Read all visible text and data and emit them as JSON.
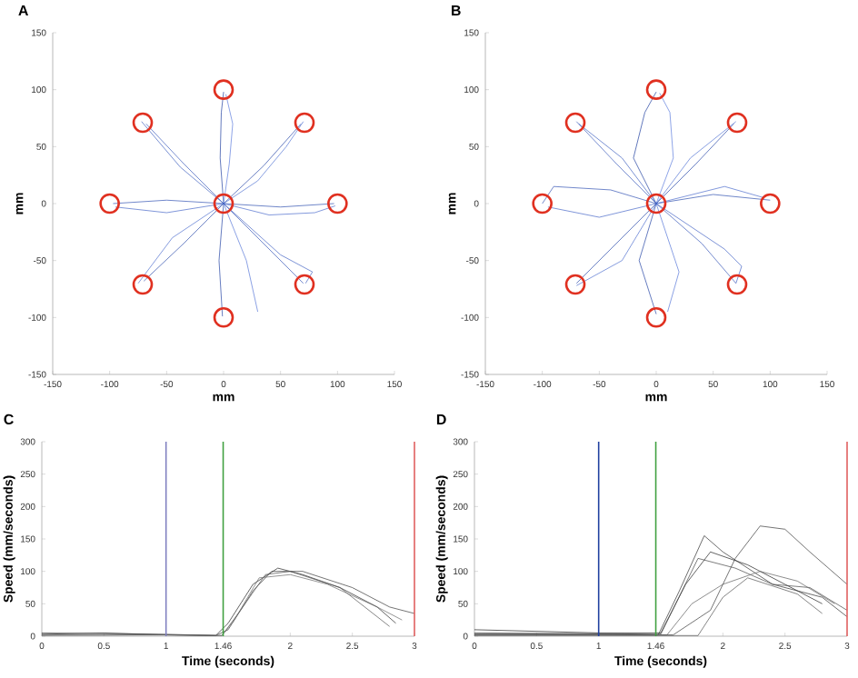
{
  "chart_data": [
    {
      "type": "line",
      "title": "A",
      "xlabel": "mm",
      "ylabel": "mm",
      "xlim": [
        -150,
        150
      ],
      "ylim": [
        -150,
        150
      ],
      "xticks": [
        -150,
        -100,
        -50,
        0,
        50,
        100,
        150
      ],
      "yticks": [
        -150,
        -100,
        -50,
        0,
        50,
        100,
        150
      ],
      "series": [
        {
          "color": "#2040a0",
          "x": [
            0,
            -3,
            -2,
            0
          ],
          "values": [
            0,
            40,
            80,
            98
          ]
        },
        {
          "color": "#5c7cdc",
          "x": [
            0,
            5,
            8,
            2
          ],
          "values": [
            0,
            35,
            70,
            96
          ]
        },
        {
          "color": "#2848a8",
          "x": [
            0,
            35,
            68
          ],
          "values": [
            0,
            33,
            70
          ]
        },
        {
          "color": "#5474d4",
          "x": [
            0,
            30,
            55,
            70
          ],
          "values": [
            0,
            20,
            50,
            72
          ]
        },
        {
          "color": "#3050b0",
          "x": [
            0,
            50,
            97
          ],
          "values": [
            0,
            -3,
            0
          ]
        },
        {
          "color": "#4c6ccc",
          "x": [
            0,
            40,
            80,
            98
          ],
          "values": [
            0,
            -10,
            -8,
            -2
          ]
        },
        {
          "color": "#3858b8",
          "x": [
            0,
            35,
            70
          ],
          "values": [
            0,
            -35,
            -70
          ]
        },
        {
          "color": "#4464c4",
          "x": [
            0,
            50,
            78,
            72
          ],
          "values": [
            0,
            -45,
            -60,
            -70
          ]
        },
        {
          "color": "#2444a4",
          "x": [
            0,
            -4,
            -1
          ],
          "values": [
            0,
            -50,
            -99
          ]
        },
        {
          "color": "#5878d8",
          "x": [
            0,
            20,
            30
          ],
          "values": [
            0,
            -50,
            -95
          ]
        },
        {
          "color": "#2c4cac",
          "x": [
            0,
            -35,
            -70
          ],
          "values": [
            0,
            -35,
            -68
          ]
        },
        {
          "color": "#5070d0",
          "x": [
            0,
            -45,
            -75
          ],
          "values": [
            0,
            -30,
            -70
          ]
        },
        {
          "color": "#3454b4",
          "x": [
            0,
            -50,
            -97
          ],
          "values": [
            0,
            3,
            0
          ]
        },
        {
          "color": "#4868c8",
          "x": [
            0,
            -50,
            -95
          ],
          "values": [
            0,
            -8,
            -3
          ]
        },
        {
          "color": "#3c5cbc",
          "x": [
            0,
            -35,
            -68
          ],
          "values": [
            0,
            35,
            70
          ]
        },
        {
          "color": "#4060c0",
          "x": [
            0,
            -38,
            -72
          ],
          "values": [
            0,
            32,
            72
          ]
        },
        {
          "type": "scatter",
          "marker": "circle",
          "color": "#e03020",
          "x": [
            0,
            71,
            100,
            71,
            0,
            -71,
            -100,
            -71,
            0
          ],
          "values": [
            100,
            71,
            0,
            -71,
            -100,
            -71,
            0,
            71,
            0
          ]
        }
      ]
    },
    {
      "type": "line",
      "title": "B",
      "xlabel": "mm",
      "ylabel": "mm",
      "xlim": [
        -150,
        150
      ],
      "ylim": [
        -150,
        150
      ],
      "xticks": [
        -150,
        -100,
        -50,
        0,
        50,
        100,
        150
      ],
      "yticks": [
        -150,
        -100,
        -50,
        0,
        50,
        100,
        150
      ],
      "series": [
        {
          "color": "#2040a0",
          "x": [
            0,
            -20,
            -10,
            0
          ],
          "values": [
            0,
            40,
            80,
            98
          ]
        },
        {
          "color": "#5c7cdc",
          "x": [
            0,
            15,
            12,
            3
          ],
          "values": [
            0,
            40,
            80,
            97
          ]
        },
        {
          "color": "#2848a8",
          "x": [
            0,
            35,
            68
          ],
          "values": [
            0,
            35,
            70
          ]
        },
        {
          "color": "#5474d4",
          "x": [
            0,
            30,
            70
          ],
          "values": [
            0,
            40,
            72
          ]
        },
        {
          "color": "#3050b0",
          "x": [
            0,
            50,
            100
          ],
          "values": [
            0,
            8,
            3
          ]
        },
        {
          "color": "#4c6ccc",
          "x": [
            0,
            60,
            95
          ],
          "values": [
            0,
            15,
            5
          ]
        },
        {
          "color": "#3858b8",
          "x": [
            0,
            40,
            70
          ],
          "values": [
            0,
            -35,
            -70
          ]
        },
        {
          "color": "#4464c4",
          "x": [
            0,
            60,
            75,
            70
          ],
          "values": [
            0,
            -40,
            -55,
            -70
          ]
        },
        {
          "color": "#2444a4",
          "x": [
            0,
            -15,
            0
          ],
          "values": [
            0,
            -50,
            -97
          ]
        },
        {
          "color": "#5878d8",
          "x": [
            0,
            20,
            10
          ],
          "values": [
            0,
            -60,
            -95
          ]
        },
        {
          "color": "#2c4cac",
          "x": [
            0,
            -35,
            -70
          ],
          "values": [
            0,
            -35,
            -70
          ]
        },
        {
          "color": "#5070d0",
          "x": [
            0,
            -30,
            -70
          ],
          "values": [
            0,
            -50,
            -72
          ]
        },
        {
          "color": "#3454b4",
          "x": [
            0,
            -40,
            -90,
            -100
          ],
          "values": [
            0,
            12,
            15,
            0
          ]
        },
        {
          "color": "#4868c8",
          "x": [
            0,
            -50,
            -95
          ],
          "values": [
            0,
            -12,
            -3
          ]
        },
        {
          "color": "#3c5cbc",
          "x": [
            0,
            -35,
            -70
          ],
          "values": [
            0,
            35,
            72
          ]
        },
        {
          "color": "#4060c0",
          "x": [
            0,
            -30,
            -68
          ],
          "values": [
            0,
            40,
            70
          ]
        },
        {
          "type": "scatter",
          "marker": "circle",
          "color": "#e03020",
          "x": [
            0,
            71,
            100,
            71,
            0,
            -71,
            -100,
            -71,
            0
          ],
          "values": [
            100,
            71,
            0,
            -71,
            -100,
            -71,
            0,
            71,
            0
          ]
        }
      ]
    },
    {
      "type": "line",
      "title": "C",
      "xlabel": "Time (seconds)",
      "ylabel": "Speed (mm/seconds)",
      "xlim": [
        0,
        3
      ],
      "ylim": [
        0,
        300
      ],
      "xticks": [
        0,
        0.5,
        1,
        1.46,
        2,
        2.5,
        3
      ],
      "yticks": [
        0,
        50,
        100,
        150,
        200,
        250,
        300
      ],
      "ref_lines": [
        {
          "axis": "x",
          "value": 1,
          "color": "#8080c0"
        },
        {
          "axis": "x",
          "value": 1.46,
          "color": "#40a040"
        },
        {
          "axis": "x",
          "value": 3,
          "color": "#e06060"
        }
      ],
      "series": [
        {
          "color": "#202020",
          "x": [
            0,
            0.5,
            1,
            1.4,
            1.5,
            1.7,
            1.9,
            2.1,
            2.4,
            2.7,
            2.85
          ],
          "values": [
            3,
            5,
            2,
            1,
            20,
            80,
            105,
            95,
            75,
            45,
            20
          ]
        },
        {
          "color": "#383838",
          "x": [
            0,
            1,
            1.4,
            1.5,
            1.7,
            1.85,
            2.1,
            2.5,
            2.8,
            3
          ],
          "values": [
            5,
            3,
            1,
            10,
            70,
            100,
            100,
            75,
            45,
            35
          ]
        },
        {
          "color": "#505050",
          "x": [
            0,
            1,
            1.45,
            1.6,
            1.8,
            2,
            2.4,
            2.8
          ],
          "values": [
            2,
            2,
            1,
            40,
            95,
            100,
            75,
            15
          ]
        },
        {
          "color": "#686868",
          "x": [
            0,
            1,
            1.45,
            1.55,
            1.75,
            2,
            2.3,
            2.7,
            2.9
          ],
          "values": [
            1,
            2,
            1,
            25,
            90,
            95,
            80,
            45,
            25
          ]
        }
      ]
    },
    {
      "type": "line",
      "title": "D",
      "xlabel": "Time (seconds)",
      "ylabel": "Speed (mm/seconds)",
      "xlim": [
        0,
        3
      ],
      "ylim": [
        0,
        300
      ],
      "xticks": [
        0,
        0.5,
        1,
        1.46,
        2,
        2.5,
        3
      ],
      "yticks": [
        0,
        50,
        100,
        150,
        200,
        250,
        300
      ],
      "ref_lines": [
        {
          "axis": "x",
          "value": 1,
          "color": "#2040a0"
        },
        {
          "axis": "x",
          "value": 1.46,
          "color": "#40a040"
        },
        {
          "axis": "x",
          "value": 3,
          "color": "#e06060"
        }
      ],
      "series": [
        {
          "color": "#202020",
          "x": [
            0,
            1,
            1.5,
            1.7,
            1.9,
            2.2,
            2.5,
            2.8
          ],
          "values": [
            10,
            5,
            5,
            80,
            130,
            110,
            80,
            50
          ]
        },
        {
          "color": "#2c2c2c",
          "x": [
            0,
            1,
            1.48,
            1.65,
            1.85,
            2.0,
            2.4,
            2.8,
            3
          ],
          "values": [
            3,
            3,
            2,
            70,
            155,
            130,
            80,
            60,
            30
          ]
        },
        {
          "color": "#383838",
          "x": [
            0,
            1,
            1.6,
            1.9,
            2.1,
            2.3,
            2.5,
            2.7,
            3
          ],
          "values": [
            2,
            2,
            2,
            40,
            120,
            170,
            165,
            130,
            80
          ]
        },
        {
          "color": "#444444",
          "x": [
            0,
            1,
            1.5,
            1.8,
            2.1,
            2.4,
            2.7,
            3
          ],
          "values": [
            5,
            4,
            3,
            120,
            105,
            80,
            75,
            40
          ]
        },
        {
          "color": "#505050",
          "x": [
            0,
            1,
            1.8,
            2.0,
            2.2,
            2.6,
            2.8
          ],
          "values": [
            1,
            1,
            1,
            60,
            90,
            65,
            35
          ]
        },
        {
          "color": "#5c5c5c",
          "x": [
            0,
            1,
            1.55,
            1.75,
            2.0,
            2.3,
            2.6,
            2.9
          ],
          "values": [
            4,
            3,
            2,
            50,
            80,
            100,
            85,
            50
          ]
        }
      ]
    }
  ]
}
